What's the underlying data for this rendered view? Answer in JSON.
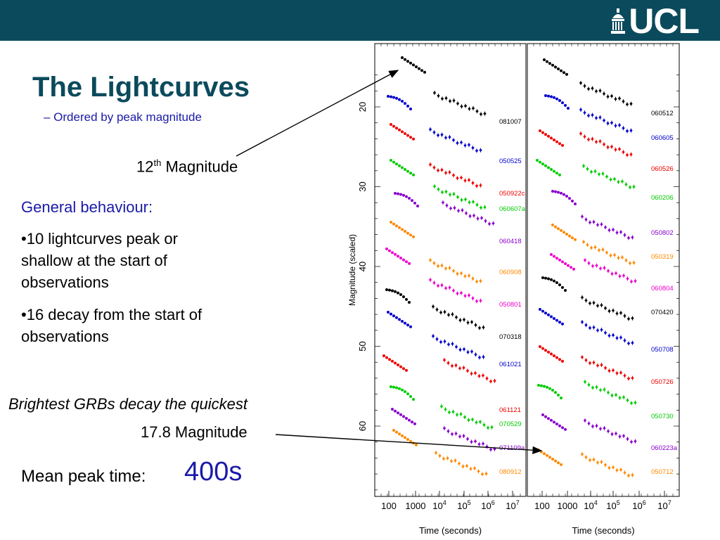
{
  "header": {
    "logo_text": "UCL",
    "logo_icon": "ucl-portico-icon",
    "bar_color": "#0b4a5c"
  },
  "slide": {
    "title": "The Lightcurves",
    "subtitle": "– Ordered by peak magnitude",
    "callout_top": {
      "value": "12",
      "sup": "th",
      "suffix": " Magnitude"
    },
    "general_heading": "General behaviour:",
    "bullets": [
      "•10 lightcurves peak or shallow at the start of observations",
      "•16 decay from the start of observations"
    ],
    "brightest": "Brightest GRBs decay the quickest",
    "callout_bottom": "17.8 Magnitude",
    "mean_label": "Mean peak time:",
    "mean_value": "400s"
  },
  "chart_data": {
    "type": "scatter",
    "ylabel": "Magnitude (scaled)",
    "xlabel": "Time (seconds)",
    "y_ticks": [
      "20",
      "30",
      "40",
      "50",
      "60"
    ],
    "x_ticks": [
      "100",
      "1000",
      "10^4",
      "10^5",
      "10^6",
      "10^7"
    ],
    "panels": [
      {
        "labels": [
          {
            "text": "081007",
            "color": "#000000"
          },
          {
            "text": "050525",
            "color": "#0000cc"
          },
          {
            "text": "050922c",
            "color": "#ee0000"
          },
          {
            "text": "060607a",
            "color": "#00cc00"
          },
          {
            "text": "060418",
            "color": "#8800cc"
          },
          {
            "text": "060908",
            "color": "#ff8800"
          },
          {
            "text": "050801",
            "color": "#ee00cc"
          },
          {
            "text": "070318",
            "color": "#000000"
          },
          {
            "text": "061021",
            "color": "#0000cc"
          },
          {
            "text": "061121",
            "color": "#ee0000"
          },
          {
            "text": "070529",
            "color": "#00cc00"
          },
          {
            "text": "071109a",
            "color": "#8800cc"
          },
          {
            "text": "080912",
            "color": "#ff8800"
          }
        ]
      },
      {
        "labels": [
          {
            "text": "060512",
            "color": "#000000"
          },
          {
            "text": "060605",
            "color": "#0000cc"
          },
          {
            "text": "060526",
            "color": "#ee0000"
          },
          {
            "text": "060206",
            "color": "#00cc00"
          },
          {
            "text": "050802",
            "color": "#8800cc"
          },
          {
            "text": "050319",
            "color": "#ff8800"
          },
          {
            "text": "060804",
            "color": "#ee00cc"
          },
          {
            "text": "070420",
            "color": "#000000"
          },
          {
            "text": "050708",
            "color": "#0000cc"
          },
          {
            "text": "050726",
            "color": "#ee0000"
          },
          {
            "text": "050730",
            "color": "#00cc00"
          },
          {
            "text": "060223a",
            "color": "#8800cc"
          },
          {
            "text": "050712",
            "color": "#ff8800"
          }
        ]
      }
    ]
  }
}
